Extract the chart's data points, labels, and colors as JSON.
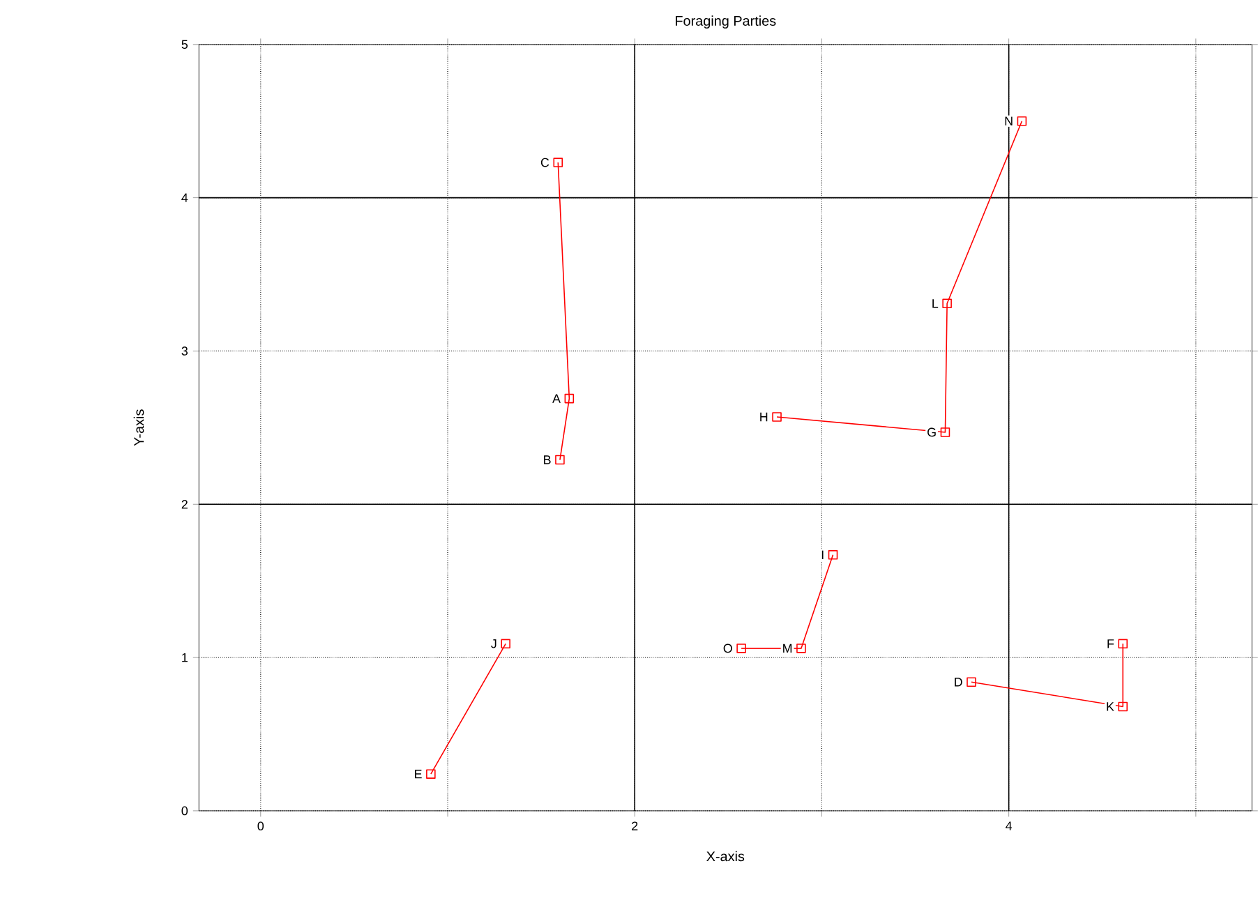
{
  "chart_data": {
    "type": "line",
    "title": "Foraging Parties",
    "xlabel": "X-axis",
    "ylabel": "Y-axis",
    "xlim": [
      -0.33,
      5.3
    ],
    "ylim": [
      0,
      5
    ],
    "xticks": [
      0,
      {
        "value": 1,
        "label": null
      },
      2,
      {
        "value": 3,
        "label": null
      },
      4,
      {
        "value": 5,
        "label": null
      }
    ],
    "yticks": [
      0,
      1,
      2,
      3,
      4,
      5
    ],
    "grid": true,
    "marker": "square",
    "line_style": "solid",
    "series": [
      {
        "color": "#ff0000",
        "x": [
          1.59,
          1.65,
          1.6
        ],
        "values": [
          4.23,
          2.69,
          2.29
        ]
      },
      {
        "color": "#ff0000",
        "x": [
          4.07,
          3.67,
          3.66,
          2.76
        ],
        "values": [
          4.5,
          3.31,
          2.47,
          2.57
        ]
      },
      {
        "color": "#ff0000",
        "x": [
          3.06,
          2.89,
          2.57
        ],
        "values": [
          1.67,
          1.06,
          1.06
        ]
      },
      {
        "color": "#ff0000",
        "x": [
          1.31,
          0.91
        ],
        "values": [
          1.09,
          0.24
        ]
      },
      {
        "color": "#ff0000",
        "x": [
          4.61,
          4.61,
          3.8
        ],
        "values": [
          1.09,
          0.68,
          0.84
        ]
      }
    ],
    "annotations": [
      {
        "text": "C",
        "x": 1.59,
        "y": 4.23
      },
      {
        "text": "A",
        "x": 1.65,
        "y": 2.69
      },
      {
        "text": "B",
        "x": 1.6,
        "y": 2.29
      },
      {
        "text": "N",
        "x": 4.07,
        "y": 4.5
      },
      {
        "text": "L",
        "x": 3.67,
        "y": 3.31
      },
      {
        "text": "G",
        "x": 3.66,
        "y": 2.47
      },
      {
        "text": "H",
        "x": 2.76,
        "y": 2.57
      },
      {
        "text": "I",
        "x": 3.06,
        "y": 1.67
      },
      {
        "text": "M",
        "x": 2.89,
        "y": 1.06
      },
      {
        "text": "O",
        "x": 2.57,
        "y": 1.06
      },
      {
        "text": "J",
        "x": 1.31,
        "y": 1.09
      },
      {
        "text": "E",
        "x": 0.91,
        "y": 0.24
      },
      {
        "text": "F",
        "x": 4.61,
        "y": 1.09
      },
      {
        "text": "K",
        "x": 4.61,
        "y": 0.68
      },
      {
        "text": "D",
        "x": 3.8,
        "y": 0.84
      }
    ]
  }
}
